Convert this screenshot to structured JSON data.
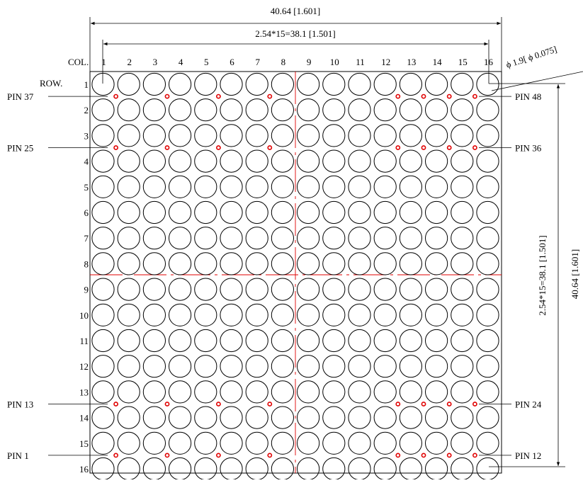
{
  "drawing": {
    "overall_width_dim": "40.64 [1.601]",
    "pitch_width_dim": "2.54*15=38.1 [1.501]",
    "pitch_height_dim": "2.54*15=38.1 [1.501]",
    "overall_height_dim": "40.64 [1.601]",
    "dot_diameter_dim": "ϕ 1.9[ ϕ 0.075]",
    "col_label": "COL.",
    "row_label": "ROW.",
    "columns": [
      "1",
      "2",
      "3",
      "4",
      "5",
      "6",
      "7",
      "8",
      "9",
      "10",
      "11",
      "12",
      "13",
      "14",
      "15",
      "16"
    ],
    "rows": [
      "1",
      "2",
      "3",
      "4",
      "5",
      "6",
      "7",
      "8",
      "9",
      "10",
      "11",
      "12",
      "13",
      "14",
      "15",
      "16"
    ],
    "pins": [
      {
        "label": "PIN 37",
        "side": "left",
        "between_rows": [
          1,
          2
        ]
      },
      {
        "label": "PIN 25",
        "side": "left",
        "between_rows": [
          3,
          4
        ]
      },
      {
        "label": "PIN 13",
        "side": "left",
        "between_rows": [
          13,
          14
        ]
      },
      {
        "label": "PIN 1",
        "side": "left",
        "between_rows": [
          15,
          16
        ]
      },
      {
        "label": "PIN 48",
        "side": "right",
        "between_rows": [
          1,
          2
        ]
      },
      {
        "label": "PIN 36",
        "side": "right",
        "between_rows": [
          3,
          4
        ]
      },
      {
        "label": "PIN 24",
        "side": "right",
        "between_rows": [
          13,
          14
        ]
      },
      {
        "label": "PIN 12",
        "side": "right",
        "between_rows": [
          15,
          16
        ]
      }
    ],
    "pin_columns_between": [
      [
        1,
        2
      ],
      [
        3,
        4
      ],
      [
        5,
        6
      ],
      [
        7,
        8
      ],
      [
        12,
        13
      ],
      [
        13,
        14
      ],
      [
        14,
        15
      ],
      [
        15,
        16
      ]
    ],
    "colors": {
      "line": "#000000",
      "centerline": "#e00000",
      "pin_mark": "#e00000"
    }
  }
}
